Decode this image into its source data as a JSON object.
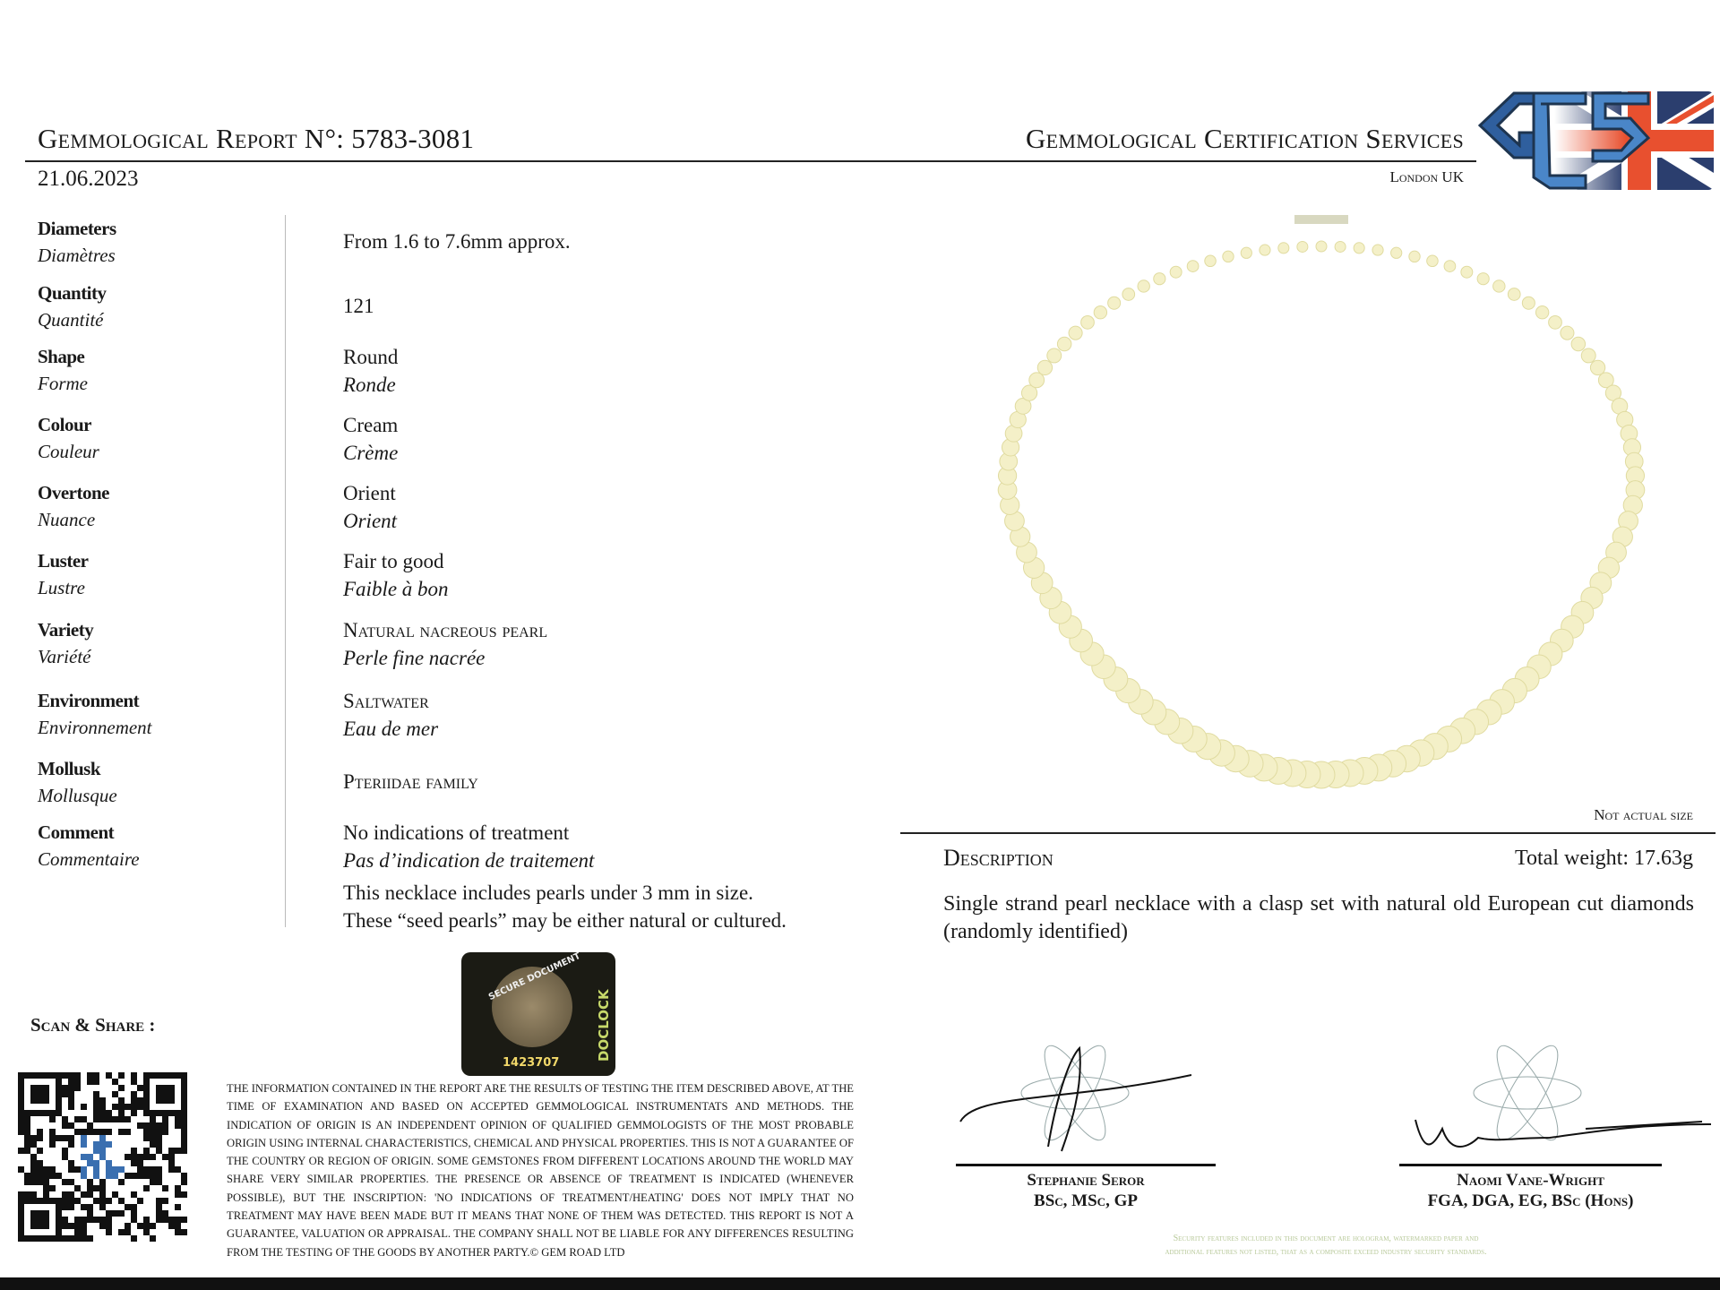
{
  "header": {
    "report_label": "Gemmological Report N°:",
    "report_number": "5783-3081",
    "date": "21.06.2023",
    "company": "Gemmological Certification Services",
    "location": "London UK",
    "logo_text": "GCS"
  },
  "properties": [
    {
      "label": "Diameters",
      "label_fr": "Diamètres",
      "value": "From 1.6 to 7.6mm approx.",
      "value_fr": ""
    },
    {
      "label": "Quantity",
      "label_fr": "Quantité",
      "value": "121",
      "value_fr": ""
    },
    {
      "label": "Shape",
      "label_fr": "Forme",
      "value": "Round",
      "value_fr": "Ronde"
    },
    {
      "label": "Colour",
      "label_fr": "Couleur",
      "value": "Cream",
      "value_fr": "Crème"
    },
    {
      "label": "Overtone",
      "label_fr": "Nuance",
      "value": "Orient",
      "value_fr": "Orient"
    },
    {
      "label": "Luster",
      "label_fr": "Lustre",
      "value": "Fair to good",
      "value_fr": "Faible à bon"
    },
    {
      "label": "Variety",
      "label_fr": "Variété",
      "value": "Natural nacreous pearl",
      "value_fr": "Perle fine nacrée"
    },
    {
      "label": "Environment",
      "label_fr": "Environnement",
      "value": "Saltwater",
      "value_fr": "Eau de mer"
    },
    {
      "label": "Mollusk",
      "label_fr": "Mollusque",
      "value": "Pteriidae family",
      "value_fr": ""
    },
    {
      "label": "Comment",
      "label_fr": "Commentaire",
      "value": "No indications of treatment",
      "value_fr": "Pas d’indication de traitement"
    }
  ],
  "comment_extra": [
    "This necklace includes pearls under 3 mm in size.",
    "These “seed pearls” may be either natural or cultured."
  ],
  "image_note": "Not actual size",
  "description": {
    "title": "Description",
    "total_weight": "Total weight: 17.63g",
    "text": "Single strand pearl necklace with a clasp set with natural old European cut diamonds (randomly identified)"
  },
  "hologram": {
    "brand": "DOCLOCK",
    "text": "SECURE DOCUMENT",
    "serial": "1423707"
  },
  "scan_share": "Scan & Share :",
  "disclaimer": "The information contained in the report are the results of testing the item described above, at the time of examination and based on accepted gemmological instrumentats and methods. The indication of origin is an independent opinion of qualified gemmologists of the most probable origin using internal characteristics, chemical and physical properties. This is not a guarantee of the country or region of origin. Some gemstones from different locations around the world may share very similar properties. The presence or absence of treatment is indicated (whenever possible), but the inscription: 'No indications of treatment/heating' does not imply that no treatment may have been made but it means that none of them was detected. This report is not a guarantee, valuation or appraisal. The company shall not be liable for any differences resulting from the testing of the goods by another party.© Gem Road LTD",
  "signatures": [
    {
      "name": "Stephanie Seror",
      "credentials": "BSc, MSc, GP"
    },
    {
      "name": "Naomi Vane-Wright",
      "credentials": "FGA, DGA, EG, BSc (Hons)"
    }
  ],
  "security_note": "Security features included in this document are hologram, watermarked paper and additional features not listed, that as a composite exceed industry security standards.",
  "colors": {
    "logo_blue": "#2f5f9e",
    "logo_dark": "#1e3550",
    "flag_red": "#e8502f",
    "pearl": "#f4f0c8"
  }
}
